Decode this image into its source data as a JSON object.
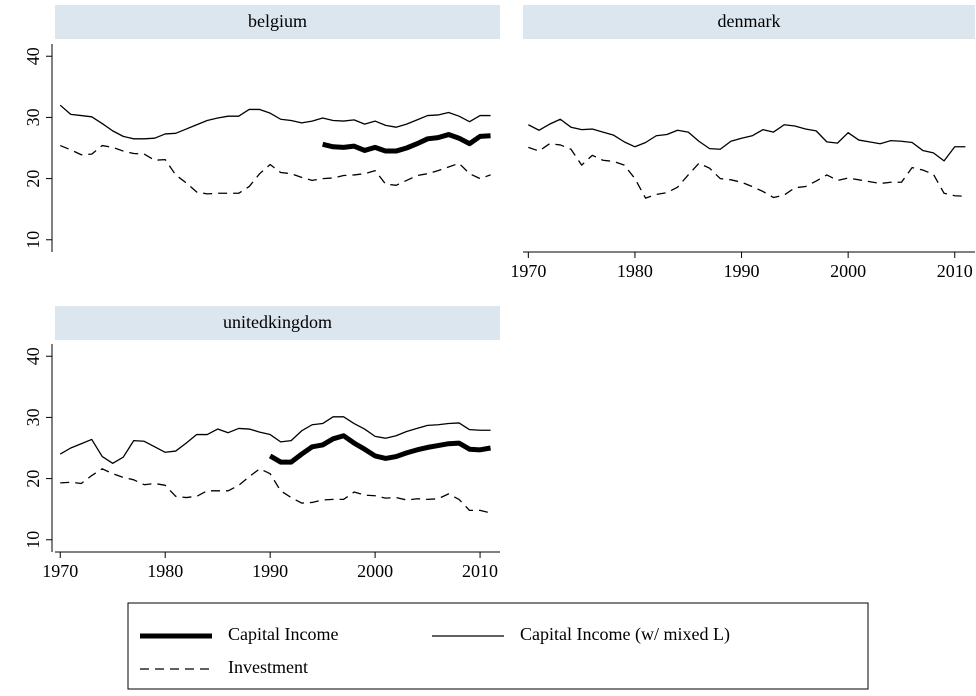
{
  "chart_data": [
    {
      "type": "line",
      "title": "belgium",
      "xaxis": false,
      "yaxis": true,
      "x": [
        1970,
        1971,
        1972,
        1973,
        1974,
        1975,
        1976,
        1977,
        1978,
        1979,
        1980,
        1981,
        1982,
        1983,
        1984,
        1985,
        1986,
        1987,
        1988,
        1989,
        1990,
        1991,
        1992,
        1993,
        1994,
        1995,
        1996,
        1997,
        1998,
        1999,
        2000,
        2001,
        2002,
        2003,
        2004,
        2005,
        2006,
        2007,
        2008,
        2009,
        2010,
        2011
      ],
      "xlim": [
        1969.5,
        2011.9
      ],
      "xticks": [
        1970,
        1980,
        1990,
        2000,
        2010
      ],
      "ylim": [
        8,
        42
      ],
      "yticks": [
        10,
        20,
        30,
        40
      ],
      "series": [
        {
          "name": "Capital Income",
          "color": "#000000",
          "width": 5,
          "dash": "solid",
          "values": [
            null,
            null,
            null,
            null,
            null,
            null,
            null,
            null,
            null,
            null,
            null,
            null,
            null,
            null,
            null,
            null,
            null,
            null,
            null,
            null,
            null,
            null,
            null,
            null,
            null,
            25.6,
            25.2,
            25.1,
            25.3,
            24.6,
            25.1,
            24.5,
            24.5,
            25.0,
            25.7,
            26.5,
            26.7,
            27.2,
            26.6,
            25.7,
            26.9,
            27.0
          ]
        },
        {
          "name": "Capital Income (w/ mixed L)",
          "color": "#000000",
          "width": 1.3,
          "dash": "solid",
          "values": [
            32,
            30.5,
            30.3,
            30.1,
            29,
            27.8,
            26.9,
            26.5,
            26.5,
            26.6,
            27.3,
            27.4,
            28.1,
            28.8,
            29.5,
            29.9,
            30.2,
            30.2,
            31.3,
            31.3,
            30.7,
            29.7,
            29.5,
            29.1,
            29.4,
            29.9,
            29.5,
            29.4,
            29.6,
            28.9,
            29.4,
            28.7,
            28.4,
            28.9,
            29.6,
            30.3,
            30.4,
            30.8,
            30.2,
            29.3,
            30.3,
            30.3
          ]
        },
        {
          "name": "Investment",
          "color": "#000000",
          "width": 1.3,
          "dash": "dashed",
          "values": [
            25.4,
            24.7,
            23.9,
            24.0,
            25.4,
            25.1,
            24.5,
            24.1,
            24.0,
            23.0,
            23.1,
            20.6,
            19.3,
            17.8,
            17.5,
            17.6,
            17.6,
            17.6,
            18.7,
            20.8,
            22.3,
            21.0,
            20.8,
            20.2,
            19.7,
            20.0,
            20.1,
            20.5,
            20.6,
            20.8,
            21.3,
            19.1,
            18.9,
            19.7,
            20.5,
            20.8,
            21.3,
            21.9,
            22.5,
            20.8,
            20.0,
            20.6
          ]
        }
      ]
    },
    {
      "type": "line",
      "title": "denmark",
      "xaxis": true,
      "yaxis": false,
      "x": [
        1970,
        1971,
        1972,
        1973,
        1974,
        1975,
        1976,
        1977,
        1978,
        1979,
        1980,
        1981,
        1982,
        1983,
        1984,
        1985,
        1986,
        1987,
        1988,
        1989,
        1990,
        1991,
        1992,
        1993,
        1994,
        1995,
        1996,
        1997,
        1998,
        1999,
        2000,
        2001,
        2002,
        2003,
        2004,
        2005,
        2006,
        2007,
        2008,
        2009,
        2010,
        2011
      ],
      "xlim": [
        1969.5,
        2011.9
      ],
      "xticks": [
        1970,
        1980,
        1990,
        2000,
        2010
      ],
      "ylim": [
        8,
        42
      ],
      "yticks": [
        10,
        20,
        30,
        40
      ],
      "series": [
        {
          "name": "Capital Income (w/ mixed L)",
          "color": "#000000",
          "width": 1.3,
          "dash": "solid",
          "values": [
            28.8,
            27.9,
            28.9,
            29.7,
            28.4,
            28.0,
            28.1,
            27.6,
            27.1,
            26.0,
            25.2,
            25.9,
            27.0,
            27.2,
            27.9,
            27.6,
            26.1,
            24.9,
            24.8,
            26.1,
            26.6,
            27.0,
            28.0,
            27.6,
            28.8,
            28.6,
            28.1,
            27.8,
            26.0,
            25.8,
            27.5,
            26.3,
            26.0,
            25.7,
            26.2,
            26.1,
            25.9,
            24.6,
            24.2,
            22.9,
            25.2,
            25.2
          ]
        },
        {
          "name": "Investment",
          "color": "#000000",
          "width": 1.3,
          "dash": "dashed",
          "values": [
            25.1,
            24.5,
            25.7,
            25.5,
            24.8,
            22.2,
            23.8,
            23.0,
            22.8,
            22.2,
            20.0,
            16.8,
            17.4,
            17.7,
            18.6,
            20.6,
            22.5,
            21.7,
            20.0,
            19.8,
            19.4,
            18.7,
            17.9,
            16.9,
            17.3,
            18.5,
            18.7,
            19.6,
            20.6,
            19.7,
            20.1,
            19.8,
            19.5,
            19.2,
            19.4,
            19.4,
            21.8,
            21.4,
            20.7,
            17.6,
            17.2,
            17.1
          ]
        }
      ]
    },
    {
      "type": "line",
      "title": "unitedkingdom",
      "xaxis": true,
      "yaxis": true,
      "x": [
        1970,
        1971,
        1972,
        1973,
        1974,
        1975,
        1976,
        1977,
        1978,
        1979,
        1980,
        1981,
        1982,
        1983,
        1984,
        1985,
        1986,
        1987,
        1988,
        1989,
        1990,
        1991,
        1992,
        1993,
        1994,
        1995,
        1996,
        1997,
        1998,
        1999,
        2000,
        2001,
        2002,
        2003,
        2004,
        2005,
        2006,
        2007,
        2008,
        2009,
        2010,
        2011
      ],
      "xlim": [
        1969.5,
        2011.9
      ],
      "xticks": [
        1970,
        1980,
        1990,
        2000,
        2010
      ],
      "ylim": [
        8,
        42
      ],
      "yticks": [
        10,
        20,
        30,
        40
      ],
      "series": [
        {
          "name": "Capital Income",
          "color": "#000000",
          "width": 5,
          "dash": "solid",
          "values": [
            null,
            null,
            null,
            null,
            null,
            null,
            null,
            null,
            null,
            null,
            null,
            null,
            null,
            null,
            null,
            null,
            null,
            null,
            null,
            null,
            23.7,
            22.7,
            22.7,
            24.0,
            25.2,
            25.5,
            26.5,
            27.0,
            25.8,
            24.8,
            23.7,
            23.3,
            23.6,
            24.2,
            24.7,
            25.1,
            25.4,
            25.7,
            25.8,
            24.8,
            24.7,
            25.0
          ]
        },
        {
          "name": "Capital Income (w/ mixed L)",
          "color": "#000000",
          "width": 1.3,
          "dash": "solid",
          "values": [
            24.0,
            25.0,
            25.7,
            26.4,
            23.6,
            22.5,
            23.5,
            26.2,
            26.1,
            25.2,
            24.3,
            24.5,
            25.8,
            27.2,
            27.2,
            28.1,
            27.5,
            28.2,
            28.1,
            27.6,
            27.2,
            26.0,
            26.2,
            27.8,
            28.8,
            29.0,
            30.1,
            30.1,
            29.0,
            28.1,
            26.9,
            26.6,
            27.0,
            27.7,
            28.2,
            28.7,
            28.8,
            29.0,
            29.1,
            28.0,
            27.9,
            27.9
          ]
        },
        {
          "name": "Investment",
          "color": "#000000",
          "width": 1.3,
          "dash": "dashed",
          "values": [
            19.3,
            19.4,
            19.2,
            20.5,
            21.6,
            20.8,
            20.2,
            19.8,
            19.0,
            19.2,
            18.9,
            17.1,
            16.9,
            17.1,
            18.0,
            18.0,
            18.0,
            18.9,
            20.3,
            21.6,
            20.8,
            18.0,
            16.9,
            16.0,
            16.1,
            16.5,
            16.6,
            16.6,
            17.8,
            17.3,
            17.2,
            16.8,
            16.9,
            16.5,
            16.7,
            16.6,
            16.7,
            17.5,
            16.6,
            14.8,
            14.8,
            14.4
          ]
        }
      ]
    }
  ]
}
